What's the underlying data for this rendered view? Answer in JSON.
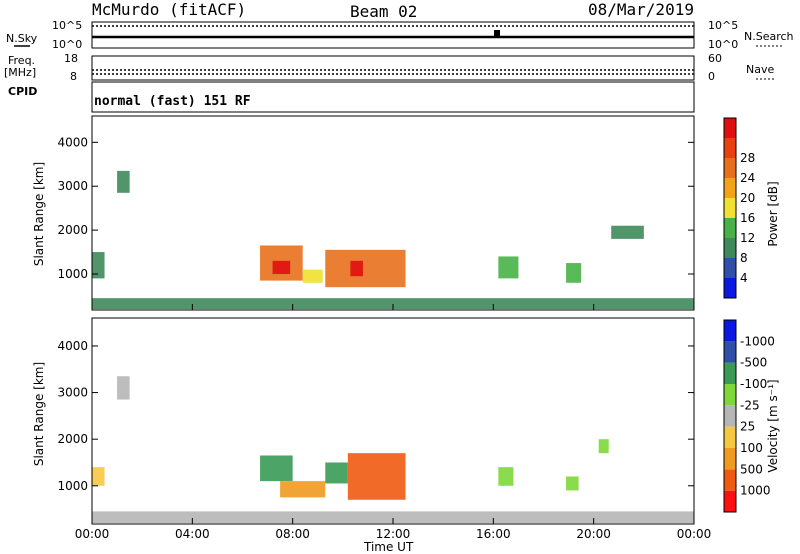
{
  "header": {
    "station": "McMurdo (fitACF)",
    "beam": "Beam 02",
    "date": "08/Mar/2019"
  },
  "top_panels": {
    "nsky_label": "N.Sky",
    "nsky_ticks": [
      "10^5",
      "10^0"
    ],
    "nsearch_label": "N.Search",
    "nsearch_ticks": [
      "10^5",
      "10^0"
    ],
    "freq_label": "Freq.",
    "freq_unit": "[MHz]",
    "freq_ticks": [
      "18",
      "8"
    ],
    "nave_label": "Nave",
    "nave_ticks": [
      "60",
      "0"
    ],
    "cpid_label": "CPID",
    "cpid_text": "normal (fast) 151 RF"
  },
  "colors": {
    "power": [
      "#0a18e0",
      "#2f4fa8",
      "#3f8a5a",
      "#48b248",
      "#f0e030",
      "#f2a318",
      "#e8701c",
      "#e8400f",
      "#e00f0f"
    ],
    "velocity": [
      "#ff1010",
      "#f05a10",
      "#f09a20",
      "#f6c840",
      "#b6b6b6",
      "#7ed83a",
      "#3a9a56",
      "#2f4fa8",
      "#0a18e0"
    ]
  },
  "chart_data": [
    {
      "type": "heatmap",
      "name": "power-panel",
      "ylabel": "Slant Range [km]",
      "xlabel": "",
      "x_ticks": [
        "00:00",
        "04:00",
        "08:00",
        "12:00",
        "16:00",
        "20:00",
        "00:00"
      ],
      "y_ticks": [
        1000,
        2000,
        3000,
        4000
      ],
      "ylim": [
        180,
        4600
      ],
      "xlim_hours": [
        0,
        24
      ],
      "colorbar": {
        "label": "Power [dB]",
        "ticks": [
          4,
          8,
          12,
          16,
          20,
          24,
          28
        ],
        "range": [
          0,
          30
        ]
      },
      "patches": [
        {
          "t": [
            0.0,
            0.5
          ],
          "r": [
            900,
            1500
          ],
          "level": 9
        },
        {
          "t": [
            1.0,
            1.5
          ],
          "r": [
            2850,
            3350
          ],
          "level": 9
        },
        {
          "t": [
            6.7,
            8.4
          ],
          "r": [
            850,
            1650
          ],
          "level": 22
        },
        {
          "t": [
            8.4,
            9.2
          ],
          "r": [
            800,
            1100
          ],
          "level": 14
        },
        {
          "t": [
            9.3,
            12.5
          ],
          "r": [
            700,
            1550
          ],
          "level": 22
        },
        {
          "t": [
            10.3,
            10.8
          ],
          "r": [
            950,
            1300
          ],
          "level": 28
        },
        {
          "t": [
            7.2,
            7.9
          ],
          "r": [
            1000,
            1300
          ],
          "level": 28
        },
        {
          "t": [
            16.2,
            17.0
          ],
          "r": [
            900,
            1400
          ],
          "level": 12
        },
        {
          "t": [
            18.9,
            19.5
          ],
          "r": [
            800,
            1250
          ],
          "level": 10
        },
        {
          "t": [
            20.7,
            22.0
          ],
          "r": [
            1800,
            2100
          ],
          "level": 8
        },
        {
          "t": [
            0.0,
            24.0
          ],
          "r": [
            200,
            450
          ],
          "level": 8
        }
      ]
    },
    {
      "type": "heatmap",
      "name": "velocity-panel",
      "ylabel": "Slant Range [km]",
      "xlabel": "Time UT",
      "x_ticks": [
        "00:00",
        "04:00",
        "08:00",
        "12:00",
        "16:00",
        "20:00",
        "00:00"
      ],
      "y_ticks": [
        1000,
        2000,
        3000,
        4000
      ],
      "ylim": [
        180,
        4600
      ],
      "xlim_hours": [
        0,
        24
      ],
      "colorbar": {
        "label": "Velocity [m s⁻¹]",
        "ticks": [
          "1000",
          "500",
          "100",
          "25",
          "-25",
          "-100",
          "-500",
          "-1000"
        ]
      },
      "patches": [
        {
          "t": [
            0.0,
            0.5
          ],
          "r": [
            1000,
            1400
          ],
          "level": 3
        },
        {
          "t": [
            1.0,
            1.5
          ],
          "r": [
            2850,
            3350
          ],
          "level": 4
        },
        {
          "t": [
            6.7,
            8.0
          ],
          "r": [
            1100,
            1650
          ],
          "level": 6
        },
        {
          "t": [
            7.5,
            9.3
          ],
          "r": [
            750,
            1100
          ],
          "level": 2
        },
        {
          "t": [
            9.3,
            10.2
          ],
          "r": [
            1050,
            1500
          ],
          "level": 6
        },
        {
          "t": [
            10.2,
            12.5
          ],
          "r": [
            700,
            1700
          ],
          "level": 1
        },
        {
          "t": [
            16.2,
            16.8
          ],
          "r": [
            1000,
            1400
          ],
          "level": 5
        },
        {
          "t": [
            18.9,
            19.4
          ],
          "r": [
            900,
            1200
          ],
          "level": 5
        },
        {
          "t": [
            20.2,
            20.6
          ],
          "r": [
            1700,
            2000
          ],
          "level": 5
        },
        {
          "t": [
            0.0,
            24.0
          ],
          "r": [
            200,
            450
          ],
          "level": 4
        }
      ]
    }
  ]
}
